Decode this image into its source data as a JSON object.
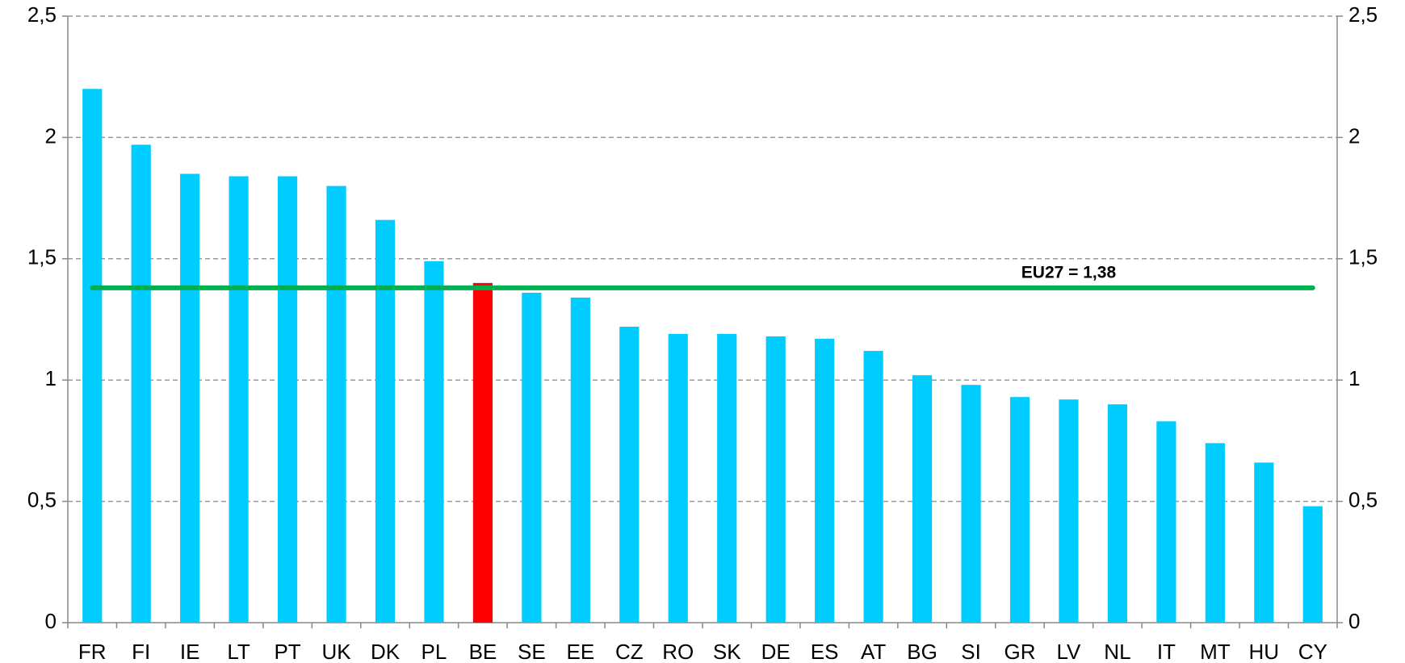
{
  "chart_data": {
    "type": "bar",
    "categories": [
      "FR",
      "FI",
      "IE",
      "LT",
      "PT",
      "UK",
      "DK",
      "PL",
      "BE",
      "SE",
      "EE",
      "CZ",
      "RO",
      "SK",
      "DE",
      "ES",
      "AT",
      "BG",
      "SI",
      "GR",
      "LV",
      "NL",
      "IT",
      "MT",
      "HU",
      "CY"
    ],
    "values": [
      2.2,
      1.97,
      1.85,
      1.84,
      1.84,
      1.8,
      1.66,
      1.49,
      1.4,
      1.36,
      1.34,
      1.22,
      1.19,
      1.19,
      1.18,
      1.17,
      1.12,
      1.02,
      0.98,
      0.93,
      0.92,
      0.9,
      0.83,
      0.74,
      0.66,
      0.48
    ],
    "colors": [
      "#00ccff",
      "#00ccff",
      "#00ccff",
      "#00ccff",
      "#00ccff",
      "#00ccff",
      "#00ccff",
      "#00ccff",
      "#ff0000",
      "#00ccff",
      "#00ccff",
      "#00ccff",
      "#00ccff",
      "#00ccff",
      "#00ccff",
      "#00ccff",
      "#00ccff",
      "#00ccff",
      "#00ccff",
      "#00ccff",
      "#00ccff",
      "#00ccff",
      "#00ccff",
      "#00ccff",
      "#00ccff",
      "#00ccff"
    ],
    "ylim": [
      0,
      2.5
    ],
    "yticks": [
      0,
      {
        "value": 0.5,
        "label": "0,5"
      },
      1,
      {
        "value": 1.5,
        "label": "1,5"
      },
      2,
      {
        "value": 2.5,
        "label": "2,5"
      }
    ],
    "y2lim": [
      0,
      2.5
    ],
    "y2ticks": [
      0,
      {
        "value": 0.5,
        "label": "0,5"
      },
      1,
      {
        "value": 1.5,
        "label": "1,5"
      },
      2,
      {
        "value": 2.5,
        "label": "2,5"
      }
    ],
    "grid": true,
    "reference_line": {
      "value": 1.38,
      "label": "EU27 = 1,38",
      "color": "#00b050"
    }
  }
}
